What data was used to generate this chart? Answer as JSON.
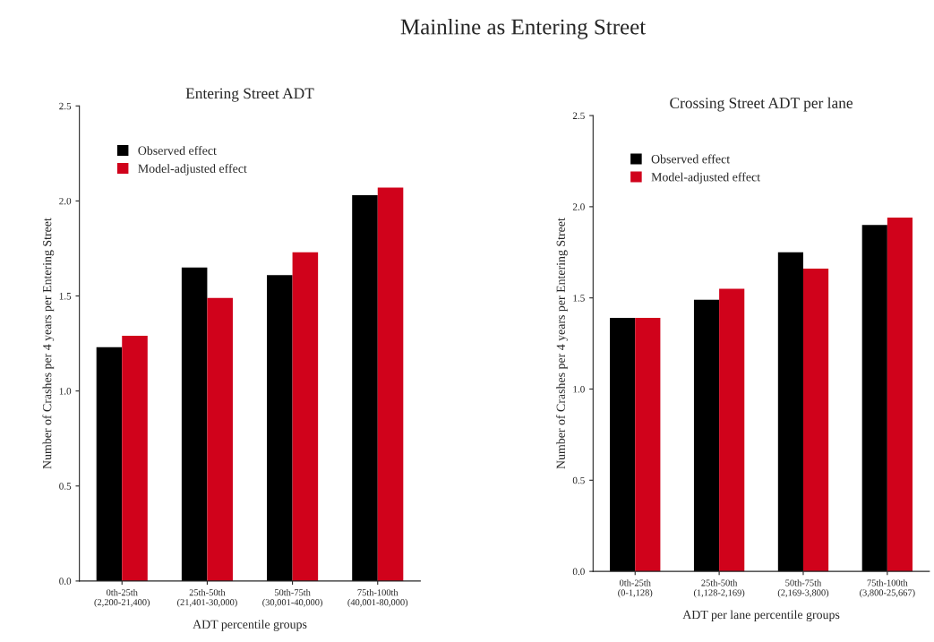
{
  "chart_data": [
    {
      "type": "bar",
      "title": "Entering Street ADT",
      "annotations": [
        "Mainline as Entering Street"
      ],
      "xlabel": "ADT percentile groups",
      "ylabel": "Number of Crashes per 4 years per Entering Street",
      "categories": [
        "0th-25th\n(2,200-21,400)",
        "25th-50th\n(21,401-30,000)",
        "50th-75th\n(30,001-40,000)",
        "75th-100th\n(40,001-80,000)"
      ],
      "series": [
        {
          "name": "Observed effect",
          "color": "#000000",
          "values": [
            1.23,
            1.65,
            1.61,
            2.03
          ]
        },
        {
          "name": "Model-adjusted effect",
          "color": "#d0021b",
          "values": [
            1.29,
            1.49,
            1.73,
            2.07
          ]
        }
      ],
      "ylim": [
        0,
        2.5
      ],
      "yticks": [
        {
          "value": 0,
          "label": "0.0"
        },
        0.5,
        {
          "value": 1,
          "label": "1.0"
        },
        1.5,
        {
          "value": 2,
          "label": "2.0"
        },
        2.5
      ],
      "legend": "top left",
      "grid": false
    },
    {
      "type": "bar",
      "title": "Crossing Street ADT per lane",
      "xlabel": "ADT per lane percentile groups",
      "ylabel": "Number of Crashes per 4 years per Entering Street",
      "categories": [
        "0th-25th\n(0-1,128)",
        "25th-50th\n(1,128-2,169)",
        "50th-75th\n(2,169-3,800)",
        "75th-100th\n(3,800-25,667)"
      ],
      "series": [
        {
          "name": "Observed effect",
          "color": "#000000",
          "values": [
            1.39,
            1.49,
            1.75,
            1.9
          ]
        },
        {
          "name": "Model-adjusted effect",
          "color": "#d0021b",
          "values": [
            1.39,
            1.55,
            1.66,
            1.94
          ]
        }
      ],
      "ylim": [
        0,
        2.5
      ],
      "yticks": [
        {
          "value": 0,
          "label": "0.0"
        },
        0.5,
        {
          "value": 1,
          "label": "1.0"
        },
        1.5,
        {
          "value": 2,
          "label": "2.0"
        },
        2.5
      ],
      "legend": "top left",
      "grid": false
    }
  ]
}
